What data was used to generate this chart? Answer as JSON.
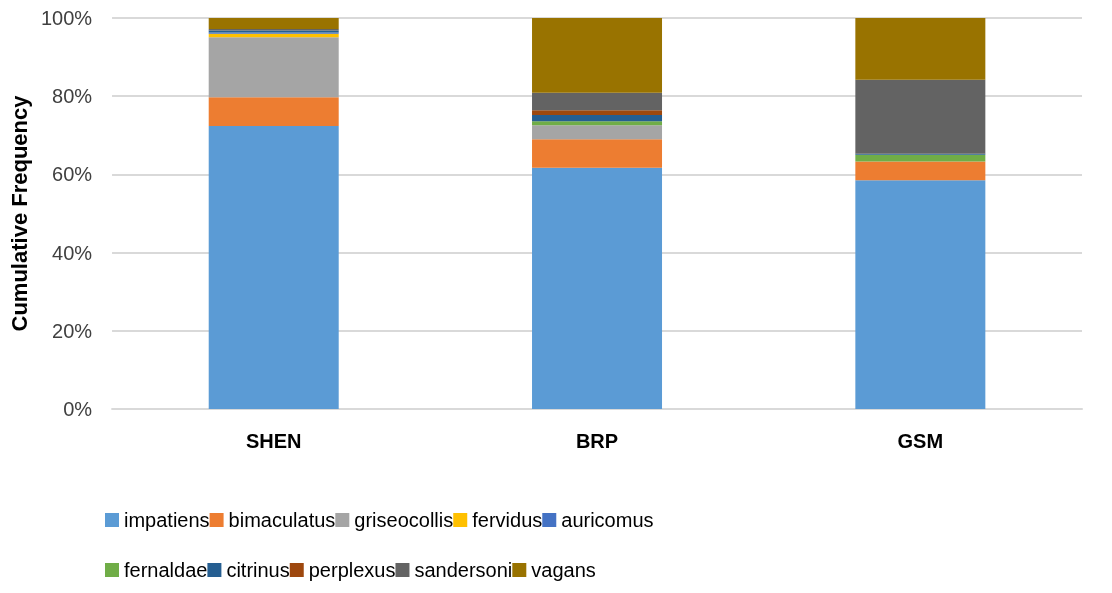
{
  "chart_data": {
    "type": "bar",
    "stacked": true,
    "ylabel": "Cumulative Frequency",
    "categories": [
      "SHEN",
      "BRP",
      "GSM"
    ],
    "series": [
      {
        "name": "impatiens",
        "color": "#5b9bd5",
        "values": [
          72.4,
          61.7,
          58.5
        ]
      },
      {
        "name": "bimaculatus",
        "color": "#ed7d31",
        "values": [
          7.3,
          7.3,
          4.8
        ]
      },
      {
        "name": "griseocollis",
        "color": "#a5a5a5",
        "values": [
          15.4,
          3.6,
          0
        ]
      },
      {
        "name": "fervidus",
        "color": "#ffc000",
        "values": [
          0.9,
          0,
          0
        ]
      },
      {
        "name": "auricomus",
        "color": "#4472c4",
        "values": [
          0.3,
          0,
          0
        ]
      },
      {
        "name": "fernaldae",
        "color": "#70ad47",
        "values": [
          0,
          1.0,
          1.7
        ]
      },
      {
        "name": "citrinus",
        "color": "#255e91",
        "values": [
          0.5,
          1.6,
          0.3
        ]
      },
      {
        "name": "perplexus",
        "color": "#9e480e",
        "values": [
          0,
          1.2,
          0
        ]
      },
      {
        "name": "sandersoni",
        "color": "#636363",
        "values": [
          0.4,
          4.5,
          18.9
        ]
      },
      {
        "name": "vagans",
        "color": "#997300",
        "values": [
          2.8,
          19.1,
          15.8
        ]
      }
    ],
    "ylim": [
      0,
      100
    ],
    "yticks": [
      {
        "value": 0,
        "label": "0%"
      },
      {
        "value": 20,
        "label": "20%"
      },
      {
        "value": 40,
        "label": "40%"
      },
      {
        "value": 60,
        "label": "60%"
      },
      {
        "value": 80,
        "label": "80%"
      },
      {
        "value": 100,
        "label": "100%"
      }
    ],
    "grid": "y",
    "legend": "bottom"
  }
}
